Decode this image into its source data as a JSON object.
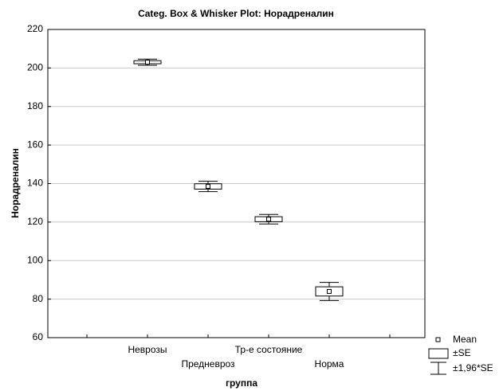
{
  "chart_data": {
    "type": "box",
    "title": "Categ. Box & Whisker Plot: Норадреналин",
    "xlabel": "группа",
    "ylabel": "Норадреналин",
    "categories": [
      "Неврозы",
      "Предневроз",
      "Тр-е состояние",
      "Норма"
    ],
    "series": [
      {
        "name": "Mean",
        "values": [
          203,
          138.5,
          121.5,
          84
        ]
      },
      {
        "name": "±SE",
        "values": [
          0.8,
          1.4,
          1.3,
          2.4
        ]
      },
      {
        "name": "±1,96*SE",
        "values": [
          1.6,
          2.7,
          2.5,
          4.7
        ]
      }
    ],
    "color": "#000000",
    "ylim": [
      60,
      220
    ],
    "yticks": [
      60,
      80,
      100,
      120,
      140,
      160,
      180,
      200,
      220
    ],
    "grid": true,
    "legend": "bottom-right"
  }
}
